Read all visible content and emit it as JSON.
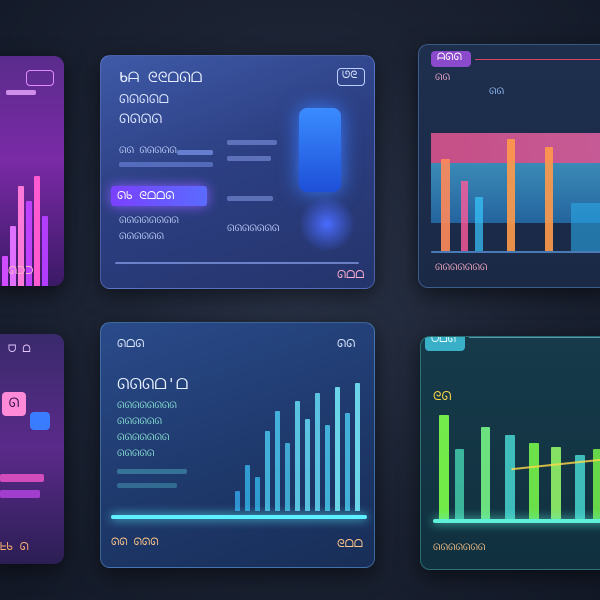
{
  "colors": {
    "background": "#1b2232",
    "purple": "#b23cff",
    "blue": "#3f6bff",
    "cyan": "#4fd8ff",
    "pink": "#ff5aa8",
    "orange": "#ff9a4a",
    "green": "#7dff4a",
    "teal": "#38e0c8"
  },
  "left_top_panel": {
    "footer": "ᘏᑐᑐ"
  },
  "left_bottom_panel": {
    "header": "ᗜ ᗝ",
    "badge": "ᘏ",
    "footer": "ᖶᑲ ᘏ"
  },
  "mid_top_panel": {
    "title_lines": [
      "ᑲᗩ ᘓᘓᗝᘏᗝ",
      "ᘏᘏᘏᘏᗝ",
      "ᘏᘏᘏᘏ"
    ],
    "corner_icon_label": "ᘎᘓ",
    "highlight": "ᘏᑲ ᘓᗝᗝᘏ",
    "row_labels": [
      "ᘏᘏ ᘏᘏᘏᘏᘏ",
      "ᘏᘏᘏᘏᘏᘏᘏᘏ",
      "ᘏᘏᘏᘏᘏᘏ",
      "ᘏᘏᘏᘏᘏᘏᘏ"
    ],
    "footer": "ᘏᗝᗝ"
  },
  "mid_bottom_panel": {
    "header": "ᘏᗝᘏ",
    "header_right": "ᘏᘏ",
    "title": "ᘏᘏᘏᗝ'ᗝ",
    "row_labels": [
      "ᘏᘏᘏᘏᘏᘏᘏᘏ",
      "ᘏᘏᘏᘏᘏᘏ",
      "ᘏᘏᘏᘏᘏᘏᘏ",
      "ᘏᘏᘏᘏᘏ"
    ],
    "footer_left": "ᘏᘏ ᘏᘏᘏ",
    "footer_right": "ᘓᗝᗝ"
  },
  "right_top_panel": {
    "tab_label": "ᗩᘏᘏ",
    "legend": [
      "ᘏᘏ",
      "ᘏᘏ"
    ],
    "footer": "ᘏᘏᘏᘏᘏᘏᘏ"
  },
  "right_bottom_panel": {
    "tab_label": "ᗜᗝᘏ",
    "axis_label": "ᘓᘏ",
    "footer": "ᘏᘏᘏᘏᘏᘏᘏ"
  }
}
